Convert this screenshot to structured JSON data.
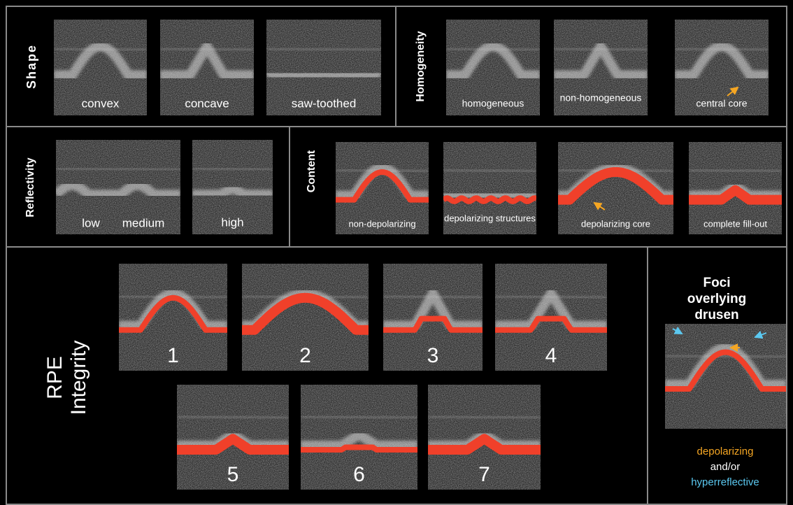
{
  "shape": {
    "title": "Shape",
    "labels": [
      "convex",
      "concave",
      "saw-toothed"
    ]
  },
  "homogeneity": {
    "title": "Homogeneity",
    "labels": [
      "homogeneous",
      "non-homogeneous",
      "central core"
    ]
  },
  "reflectivity": {
    "title": "Reflectivity",
    "labels": [
      "low",
      "medium",
      "high"
    ]
  },
  "content": {
    "title": "Content",
    "labels": [
      "non-depolarizing",
      "depolarizing structures",
      "depolarizing core",
      "complete fill-out"
    ]
  },
  "rpe_integrity": {
    "title_lines": [
      "RPE",
      "Integrity"
    ],
    "labels": [
      "1",
      "2",
      "3",
      "4",
      "5",
      "6",
      "7"
    ]
  },
  "foci": {
    "title_lines": [
      "Foci",
      "overlying",
      "drusen"
    ],
    "legend": [
      "depolarizing",
      "and/or",
      "hyperreflective"
    ]
  }
}
